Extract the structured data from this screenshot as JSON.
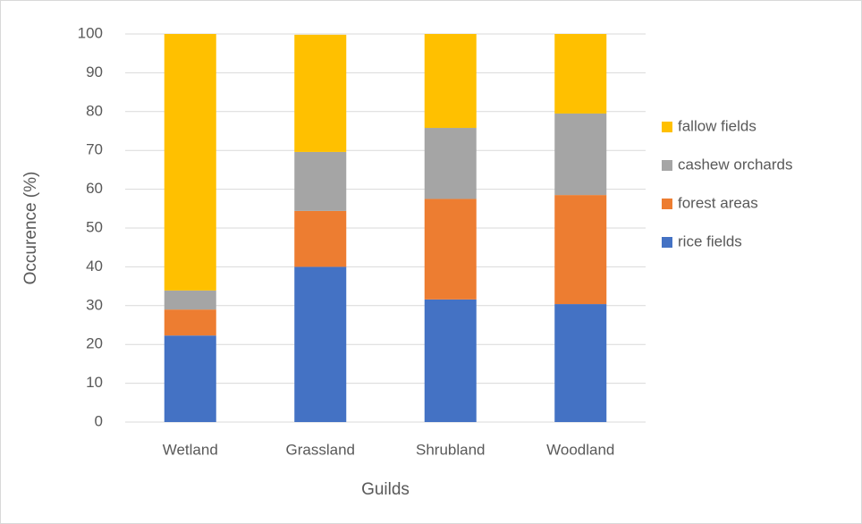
{
  "chart_data": {
    "type": "stacked_bar",
    "x_label": "Guilds",
    "y_label": "Occurence (%)",
    "categories": [
      "Wetland",
      "Grassland",
      "Shrubland",
      "Woodland"
    ],
    "series": [
      {
        "name": "rice fields",
        "color": "#4472c4",
        "values": [
          22.3,
          40,
          31.6,
          30.4
        ]
      },
      {
        "name": "forest areas",
        "color": "#ed7d31",
        "values": [
          6.7,
          14.4,
          25.9,
          28.1
        ]
      },
      {
        "name": "cashew orchards",
        "color": "#a5a5a5",
        "values": [
          4.9,
          15.2,
          18.3,
          21.0
        ]
      },
      {
        "name": "fallow fields",
        "color": "#ffc000",
        "values": [
          66.1,
          30.2,
          24.2,
          20.5
        ]
      }
    ],
    "ylim": [
      0,
      100
    ],
    "yticks": [
      0,
      10,
      20,
      30,
      40,
      50,
      60,
      70,
      80,
      90,
      100
    ],
    "grid": true,
    "legend": "right"
  }
}
